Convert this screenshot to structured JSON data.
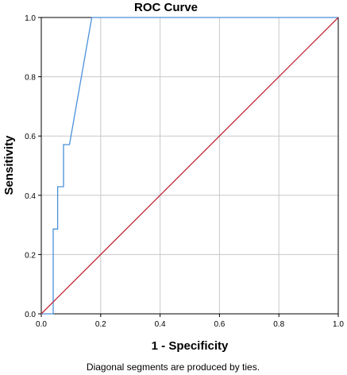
{
  "chart_data": {
    "type": "line",
    "title": "ROC Curve",
    "xlabel": "1 - Specificity",
    "ylabel": "Sensitivity",
    "xlim": [
      0,
      1
    ],
    "ylim": [
      0,
      1
    ],
    "xticks": [
      "0.0",
      "0.2",
      "0.4",
      "0.6",
      "0.8",
      "1.0"
    ],
    "yticks": [
      "0.0",
      "0.2",
      "0.4",
      "0.6",
      "0.8",
      "1.0"
    ],
    "grid": true,
    "footnote": "Diagonal segments are produced by ties.",
    "series": [
      {
        "color": "#4a90d9",
        "x": [
          0.0,
          0.04,
          0.04,
          0.055,
          0.055,
          0.075,
          0.075,
          0.095,
          0.17,
          1.0
        ],
        "y": [
          0.0,
          0.0,
          0.286,
          0.286,
          0.429,
          0.429,
          0.571,
          0.571,
          1.0,
          1.0
        ]
      },
      {
        "color": "#c0283a",
        "x": [
          0.0,
          1.0
        ],
        "y": [
          0.0,
          1.0
        ]
      }
    ]
  }
}
